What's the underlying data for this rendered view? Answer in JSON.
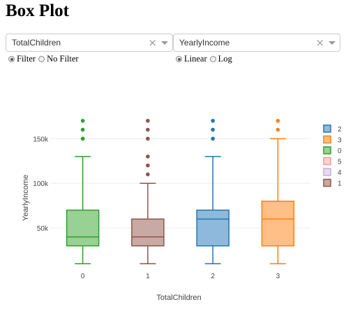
{
  "page": {
    "title": "Box Plot"
  },
  "controls": {
    "x_dropdown": {
      "value": "TotalChildren",
      "clear": "×"
    },
    "y_dropdown": {
      "value": "YearlyIncome",
      "clear": "×"
    },
    "filter_radio": {
      "options": [
        "Filter",
        "No Filter"
      ],
      "selected": "Filter"
    },
    "scale_radio": {
      "options": [
        "Linear",
        "Log"
      ],
      "selected": "Linear"
    }
  },
  "chart_data": {
    "type": "box",
    "xlabel": "TotalChildren",
    "ylabel": "YearlyIncome",
    "ylim": [
      0,
      180000
    ],
    "yticks": [
      50000,
      100000,
      150000
    ],
    "ytick_labels": [
      "50k",
      "100k",
      "150k"
    ],
    "categories": [
      "0",
      "1",
      "2",
      "3"
    ],
    "grid": true,
    "legend_position": "right",
    "series": [
      {
        "name": "0",
        "category": "0",
        "color": "#2ca02c",
        "fill": "#98d194",
        "min": 10000,
        "q1": 30000,
        "median": 40000,
        "q3": 70000,
        "max": 130000,
        "outliers": [
          150000,
          160000,
          170000
        ]
      },
      {
        "name": "1",
        "category": "1",
        "color": "#8c564b",
        "fill": "#c9a9a4",
        "min": 10000,
        "q1": 30000,
        "median": 40000,
        "q3": 60000,
        "max": 100000,
        "outliers": [
          110000,
          120000,
          130000,
          150000,
          160000,
          170000
        ]
      },
      {
        "name": "2",
        "category": "2",
        "color": "#1f77b4",
        "fill": "#8fb9dc",
        "min": 10000,
        "q1": 30000,
        "median": 60000,
        "q3": 70000,
        "max": 130000,
        "outliers": [
          150000,
          160000,
          170000
        ]
      },
      {
        "name": "3",
        "category": "3",
        "color": "#ff7f0e",
        "fill": "#ffbf86",
        "min": 10000,
        "q1": 30000,
        "median": 60000,
        "q3": 80000,
        "max": 150000,
        "outliers": [
          160000,
          170000
        ]
      }
    ],
    "legend": [
      {
        "label": "2",
        "color": "#1f77b4",
        "fill": "#8fb9dc"
      },
      {
        "label": "3",
        "color": "#ff7f0e",
        "fill": "#ffbf86"
      },
      {
        "label": "0",
        "color": "#2ca02c",
        "fill": "#98d194"
      },
      {
        "label": "5",
        "color": "#ff9896",
        "fill": "#ffd3d2"
      },
      {
        "label": "4",
        "color": "#c5b0d5",
        "fill": "#e7dcef"
      },
      {
        "label": "1",
        "color": "#8c564b",
        "fill": "#c9a9a4"
      }
    ]
  }
}
